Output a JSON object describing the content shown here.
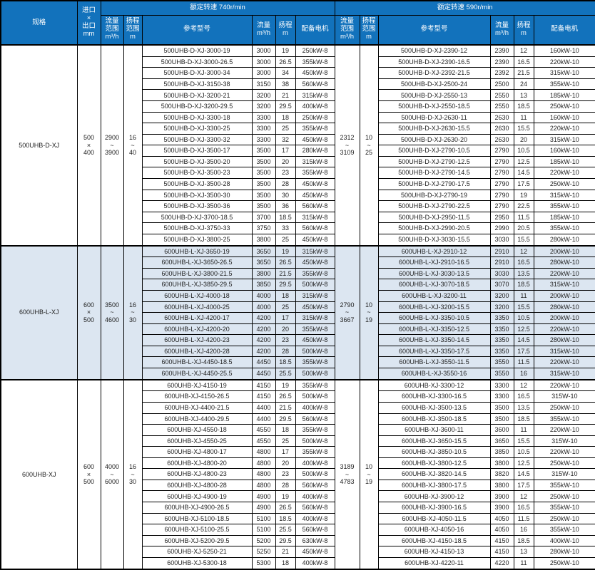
{
  "table": {
    "headers": {
      "spec": "规格",
      "inlet_outlet": "进口\n×\n出口\nmm",
      "groups": [
        {
          "title": "额定转速 740r/min"
        },
        {
          "title": "额定转速 590r/min"
        }
      ],
      "sub": {
        "flow_range": "流量\n范围\nm³/h",
        "head_range": "扬程\n范围\nm",
        "ref_model": "参考型号",
        "flow": "流量\nm³/h",
        "head": "扬程\nm",
        "motor": "配备电机"
      }
    },
    "colors": {
      "header_bg": "#1272bc",
      "header_text": "#ffffff",
      "block_alt_bg": "#dce6f1",
      "row_bg": "#ffffff",
      "border": "#000000"
    },
    "blocks": [
      {
        "spec": "500UHB-D-XJ",
        "inlet_outlet": "500\n×\n400",
        "g740": {
          "flow_range": "2900\n~\n3900",
          "head_range": "16\n~\n40",
          "rows": [
            [
              "500UHB-D-XJ-3000-19",
              "3000",
              "19",
              "250kW-8"
            ],
            [
              "500UHB-D-XJ-3000-26.5",
              "3000",
              "26.5",
              "355kW-8"
            ],
            [
              "500UHB-D-XJ-3000-34",
              "3000",
              "34",
              "450kW-8"
            ],
            [
              "500UHB-D-XJ-3150-38",
              "3150",
              "38",
              "560kW-8"
            ],
            [
              "500UHB-D-XJ-3200-21",
              "3200",
              "21",
              "315kW-8"
            ],
            [
              "500UHB-D-XJ-3200-29.5",
              "3200",
              "29.5",
              "400kW-8"
            ],
            [
              "500UHB-D-XJ-3300-18",
              "3300",
              "18",
              "250kW-8"
            ],
            [
              "500UHB-D-XJ-3300-25",
              "3300",
              "25",
              "355kW-8"
            ],
            [
              "500UHB-D-XJ-3300-32",
              "3300",
              "32",
              "450kW-8"
            ],
            [
              "500UHB-D-XJ-3500-17",
              "3500",
              "17",
              "280kW-8"
            ],
            [
              "500UHB-D-XJ-3500-20",
              "3500",
              "20",
              "315kW-8"
            ],
            [
              "500UHB-D-XJ-3500-23",
              "3500",
              "23",
              "355kW-8"
            ],
            [
              "500UHB-D-XJ-3500-28",
              "3500",
              "28",
              "450kW-8"
            ],
            [
              "500UHB-D-XJ-3500-30",
              "3500",
              "30",
              "450kW-8"
            ],
            [
              "500UHB-D-XJ-3500-36",
              "3500",
              "36",
              "560kW-8"
            ],
            [
              "500UHB-D-XJ-3700-18.5",
              "3700",
              "18.5",
              "315kW-8"
            ],
            [
              "500UHB-D-XJ-3750-33",
              "3750",
              "33",
              "560kW-8"
            ],
            [
              "500UHB-D-XJ-3800-25",
              "3800",
              "25",
              "450kW-8"
            ]
          ]
        },
        "g590": {
          "flow_range": "2312\n~\n3109",
          "head_range": "10\n~\n25",
          "rows": [
            [
              "500UHB-D-XJ-2390-12",
              "2390",
              "12",
              "160kW-10"
            ],
            [
              "500UHB-D-XJ-2390-16.5",
              "2390",
              "16.5",
              "220kW-10"
            ],
            [
              "500UHB-D-XJ-2392-21.5",
              "2392",
              "21.5",
              "315kW-10"
            ],
            [
              "500UHB-D-XJ-2500-24",
              "2500",
              "24",
              "355kW-10"
            ],
            [
              "500UHB-D-XJ-2550-13",
              "2550",
              "13",
              "185kW-10"
            ],
            [
              "500UHB-D-XJ-2550-18.5",
              "2550",
              "18.5",
              "250kW-10"
            ],
            [
              "500UHB-D-XJ-2630-11",
              "2630",
              "11",
              "160kW-10"
            ],
            [
              "500UHB-D-XJ-2630-15.5",
              "2630",
              "15.5",
              "220kW-10"
            ],
            [
              "500UHB-D-XJ-2630-20",
              "2630",
              "20",
              "315kW-10"
            ],
            [
              "500UHB-D-XJ-2790-10.5",
              "2790",
              "10.5",
              "160kW-10"
            ],
            [
              "500UHB-D-XJ-2790-12.5",
              "2790",
              "12.5",
              "185kW-10"
            ],
            [
              "500UHB-D-XJ-2790-14.5",
              "2790",
              "14.5",
              "220kW-10"
            ],
            [
              "500UHB-D-XJ-2790-17.5",
              "2790",
              "17.5",
              "250kW-10"
            ],
            [
              "500UHB-D-XJ-2790-19",
              "2790",
              "19",
              "315kW-10"
            ],
            [
              "500UHB-D-XJ-2790-22.5",
              "2790",
              "22.5",
              "355kW-10"
            ],
            [
              "500UHB-D-XJ-2950-11.5",
              "2950",
              "11.5",
              "185kW-10"
            ],
            [
              "500UHB-D-XJ-2990-20.5",
              "2990",
              "20.5",
              "355kW-10"
            ],
            [
              "500UHB-D-XJ-3030-15.5",
              "3030",
              "15.5",
              "280kW-10"
            ]
          ]
        }
      },
      {
        "spec": "600UHB-L-XJ",
        "inlet_outlet": "600\n×\n500",
        "g740": {
          "flow_range": "3500\n~\n4600",
          "head_range": "16\n~\n30",
          "rows": [
            [
              "600UHB-L-XJ-3650-19",
              "3650",
              "19",
              "315kW-8"
            ],
            [
              "600UHB-L-XJ-3650-26.5",
              "3650",
              "26.5",
              "450kW-8"
            ],
            [
              "600UHB-L-XJ-3800-21.5",
              "3800",
              "21.5",
              "355kW-8"
            ],
            [
              "600UHB-L-XJ-3850-29.5",
              "3850",
              "29.5",
              "500kW-8"
            ],
            [
              "600UHB-L-XJ-4000-18",
              "4000",
              "18",
              "315kW-8"
            ],
            [
              "600UHB-L-XJ-4000-25",
              "4000",
              "25",
              "450kW-8"
            ],
            [
              "600UHB-L-XJ-4200-17",
              "4200",
              "17",
              "315kW-8"
            ],
            [
              "600UHB-L-XJ-4200-20",
              "4200",
              "20",
              "355kW-8"
            ],
            [
              "600UHB-L-XJ-4200-23",
              "4200",
              "23",
              "450kW-8"
            ],
            [
              "600UHB-L-XJ-4200-28",
              "4200",
              "28",
              "500kW-8"
            ],
            [
              "600UHB-L-XJ-4450-18.5",
              "4450",
              "18.5",
              "355kW-8"
            ],
            [
              "600UHB-L-XJ-4450-25.5",
              "4450",
              "25.5",
              "500kW-8"
            ]
          ]
        },
        "g590": {
          "flow_range": "2790\n~\n3667",
          "head_range": "10\n~\n19",
          "rows": [
            [
              "600UHB-L-XJ-2910-12",
              "2910",
              "12",
              "200kW-10"
            ],
            [
              "600UHB-L-XJ-2910-16.5",
              "2910",
              "16.5",
              "280kW-10"
            ],
            [
              "600UHB-L-XJ-3030-13.5",
              "3030",
              "13.5",
              "220kW-10"
            ],
            [
              "600UHB-L-XJ-3070-18.5",
              "3070",
              "18.5",
              "315kW-10"
            ],
            [
              "600UHB-L-XJ-3200-11",
              "3200",
              "11",
              "200kW-10"
            ],
            [
              "600UHB-L-XJ-3200-15.5",
              "3200",
              "15.5",
              "280kW-10"
            ],
            [
              "600UHB-L-XJ-3350-10.5",
              "3350",
              "10.5",
              "200kW-10"
            ],
            [
              "600UHB-L-XJ-3350-12.5",
              "3350",
              "12.5",
              "220kW-10"
            ],
            [
              "600UHB-L-XJ-3350-14.5",
              "3350",
              "14.5",
              "280kW-10"
            ],
            [
              "600UHB-L-XJ-3350-17.5",
              "3350",
              "17.5",
              "315kW-10"
            ],
            [
              "600UHB-L-XJ-3550-11.5",
              "3550",
              "11.5",
              "220kW-10"
            ],
            [
              "600UHB-L-XJ-3550-16",
              "3550",
              "16",
              "315kW-10"
            ]
          ]
        }
      },
      {
        "spec": "600UHB-XJ",
        "inlet_outlet": "600\n×\n500",
        "g740": {
          "flow_range": "4000\n~\n6000",
          "head_range": "16\n~\n30",
          "rows": [
            [
              "600UHB-XJ-4150-19",
              "4150",
              "19",
              "355kW-8"
            ],
            [
              "600UHB-XJ-4150-26.5",
              "4150",
              "26.5",
              "500kW-8"
            ],
            [
              "600UHB-XJ-4400-21.5",
              "4400",
              "21.5",
              "400kW-8"
            ],
            [
              "600UHB-XJ-4400-29.5",
              "4400",
              "29.5",
              "560kW-8"
            ],
            [
              "600UHB-XJ-4550-18",
              "4550",
              "18",
              "355kW-8"
            ],
            [
              "600UHB-XJ-4550-25",
              "4550",
              "25",
              "500kW-8"
            ],
            [
              "600UHB-XJ-4800-17",
              "4800",
              "17",
              "355kW-8"
            ],
            [
              "600UHB-XJ-4800-20",
              "4800",
              "20",
              "400kW-8"
            ],
            [
              "600UHB-XJ-4800-23",
              "4800",
              "23",
              "500kW-8"
            ],
            [
              "600UHB-XJ-4800-28",
              "4800",
              "28",
              "560kW-8"
            ],
            [
              "600UHB-XJ-4900-19",
              "4900",
              "19",
              "400kW-8"
            ],
            [
              "600UHB-XJ-4900-26.5",
              "4900",
              "26.5",
              "560kW-8"
            ],
            [
              "600UHB-XJ-5100-18.5",
              "5100",
              "18.5",
              "400kW-8"
            ],
            [
              "600UHB-XJ-5100-25.5",
              "5100",
              "25.5",
              "560kW-8"
            ],
            [
              "600UHB-XJ-5200-29.5",
              "5200",
              "29.5",
              "630kW-8"
            ],
            [
              "600UHB-XJ-5250-21",
              "5250",
              "21",
              "450kW-8"
            ],
            [
              "600UHB-XJ-5300-18",
              "5300",
              "18",
              "400kW-8"
            ]
          ]
        },
        "g590": {
          "flow_range": "3189\n~\n4783",
          "head_range": "10\n~\n19",
          "rows": [
            [
              "600UHB-XJ-3300-12",
              "3300",
              "12",
              "220kW-10"
            ],
            [
              "600UHB-XJ-3300-16.5",
              "3300",
              "16.5",
              "315W-10"
            ],
            [
              "600UHB-XJ-3500-13.5",
              "3500",
              "13.5",
              "250kW-10"
            ],
            [
              "600UHB-XJ-3500-18.5",
              "3500",
              "18.5",
              "355kW-10"
            ],
            [
              "600UHB-XJ-3600-11",
              "3600",
              "11",
              "220kW-10"
            ],
            [
              "600UHB-XJ-3650-15.5",
              "3650",
              "15.5",
              "315W-10"
            ],
            [
              "600UHB-XJ-3850-10.5",
              "3850",
              "10.5",
              "220kW-10"
            ],
            [
              "600UHB-XJ-3800-12.5",
              "3800",
              "12.5",
              "250kW-10"
            ],
            [
              "600UHB-XJ-3820-14.5",
              "3820",
              "14.5",
              "315W-10"
            ],
            [
              "600UHB-XJ-3800-17.5",
              "3800",
              "17.5",
              "355kW-10"
            ],
            [
              "600UHB-XJ-3900-12",
              "3900",
              "12",
              "250kW-10"
            ],
            [
              "600UHB-XJ-3900-16.5",
              "3900",
              "16.5",
              "355kW-10"
            ],
            [
              "600UHB-XJ-4050-11.5",
              "4050",
              "11.5",
              "250kW-10"
            ],
            [
              "600UHB-XJ-4050-16",
              "4050",
              "16",
              "355kW-10"
            ],
            [
              "600UHB-XJ-4150-18.5",
              "4150",
              "18.5",
              "400kW-10"
            ],
            [
              "600UHB-XJ-4150-13",
              "4150",
              "13",
              "280kW-10"
            ],
            [
              "600UHB-XJ-4220-11",
              "4220",
              "11",
              "250kW-10"
            ]
          ]
        }
      }
    ]
  }
}
